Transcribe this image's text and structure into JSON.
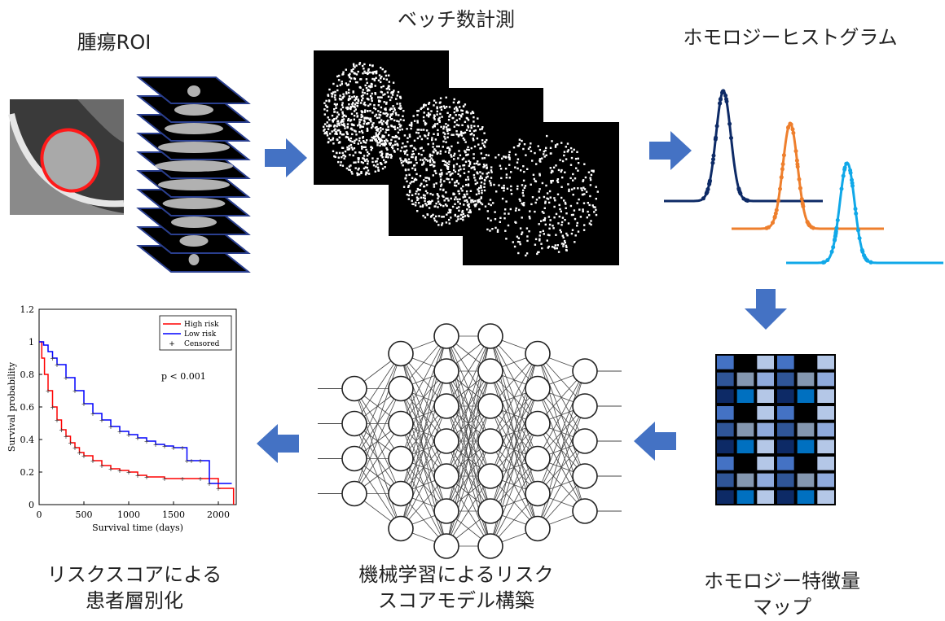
{
  "steps": {
    "roi_label": "腫瘍ROI",
    "betti_label": "ベッチ数計測",
    "histogram_label": "ホモロジーヒストグラム",
    "feature_map_label": "ホモロジー特徴量\nマップ",
    "ml_label": "機械学習によるリスク\nスコアモデル構築",
    "risk_label": "リスクスコアによる\n患者層別化"
  },
  "colors": {
    "arrow": "#4472c4",
    "hist_series": [
      "#0d2a66",
      "#ee7f2d",
      "#10a8e8"
    ],
    "roi_contour": "#ff1a1a"
  },
  "feature_map": {
    "grid": [
      [
        "#4472c4",
        "#000000",
        "#b4c7e7",
        "#4472c4",
        "#000000",
        "#b4c7e7"
      ],
      [
        "#2f5597",
        "#8497b0",
        "#8faadc",
        "#2f5597",
        "#8497b0",
        "#8faadc"
      ],
      [
        "#0d2a66",
        "#0070c0",
        "#b4c7e7",
        "#0d2a66",
        "#0070c0",
        "#b4c7e7"
      ],
      [
        "#4472c4",
        "#000000",
        "#b4c7e7",
        "#4472c4",
        "#000000",
        "#b4c7e7"
      ],
      [
        "#2f5597",
        "#8497b0",
        "#8faadc",
        "#2f5597",
        "#8497b0",
        "#8faadc"
      ],
      [
        "#0d2a66",
        "#0070c0",
        "#b4c7e7",
        "#0d2a66",
        "#0070c0",
        "#b4c7e7"
      ],
      [
        "#4472c4",
        "#000000",
        "#b4c7e7",
        "#4472c4",
        "#000000",
        "#b4c7e7"
      ],
      [
        "#2f5597",
        "#8497b0",
        "#8faadc",
        "#2f5597",
        "#8497b0",
        "#8faadc"
      ],
      [
        "#0d2a66",
        "#0070c0",
        "#b4c7e7",
        "#0d2a66",
        "#0070c0",
        "#b4c7e7"
      ]
    ]
  },
  "network": {
    "layers": [
      4,
      6,
      7,
      7,
      6,
      5
    ]
  },
  "chart_data": {
    "type": "line",
    "xlabel": "Survival time (days)",
    "ylabel": "Survival probability",
    "xlim": [
      0,
      2200
    ],
    "ylim": [
      0,
      1.2
    ],
    "xticks": [
      "0",
      "500",
      "1000",
      "1500",
      "2000"
    ],
    "xtick_values": [
      0,
      500,
      1000,
      1500,
      2000
    ],
    "yticks": [
      "0",
      "0.2",
      "0.4",
      "0.6",
      "0.8",
      "1",
      "1.2"
    ],
    "ytick_values": [
      0,
      0.2,
      0.4,
      0.6,
      0.8,
      1.0,
      1.2
    ],
    "annotation": "p < 0.001",
    "legend_position": "top-right",
    "legend": [
      "High risk",
      "Low risk",
      "Censored"
    ],
    "series": [
      {
        "name": "High risk",
        "color": "#ff0000",
        "x": [
          0,
          30,
          60,
          100,
          150,
          200,
          250,
          300,
          350,
          400,
          450,
          500,
          600,
          700,
          800,
          900,
          1000,
          1100,
          1200,
          1400,
          1600,
          1800,
          2000,
          2150,
          2170
        ],
        "y": [
          1.0,
          0.9,
          0.8,
          0.7,
          0.6,
          0.52,
          0.46,
          0.42,
          0.38,
          0.35,
          0.32,
          0.3,
          0.27,
          0.24,
          0.22,
          0.21,
          0.2,
          0.18,
          0.17,
          0.16,
          0.16,
          0.16,
          0.1,
          0.1,
          0.0
        ]
      },
      {
        "name": "Low risk",
        "color": "#0000ff",
        "x": [
          0,
          50,
          100,
          150,
          200,
          300,
          400,
          500,
          600,
          700,
          800,
          900,
          1000,
          1100,
          1200,
          1300,
          1400,
          1500,
          1600,
          1650,
          1700,
          1800,
          1900,
          2000,
          2150
        ],
        "y": [
          1.0,
          0.98,
          0.94,
          0.9,
          0.86,
          0.78,
          0.7,
          0.62,
          0.56,
          0.52,
          0.48,
          0.45,
          0.43,
          0.41,
          0.39,
          0.37,
          0.36,
          0.35,
          0.35,
          0.27,
          0.27,
          0.27,
          0.13,
          0.13,
          0.13
        ]
      }
    ]
  }
}
